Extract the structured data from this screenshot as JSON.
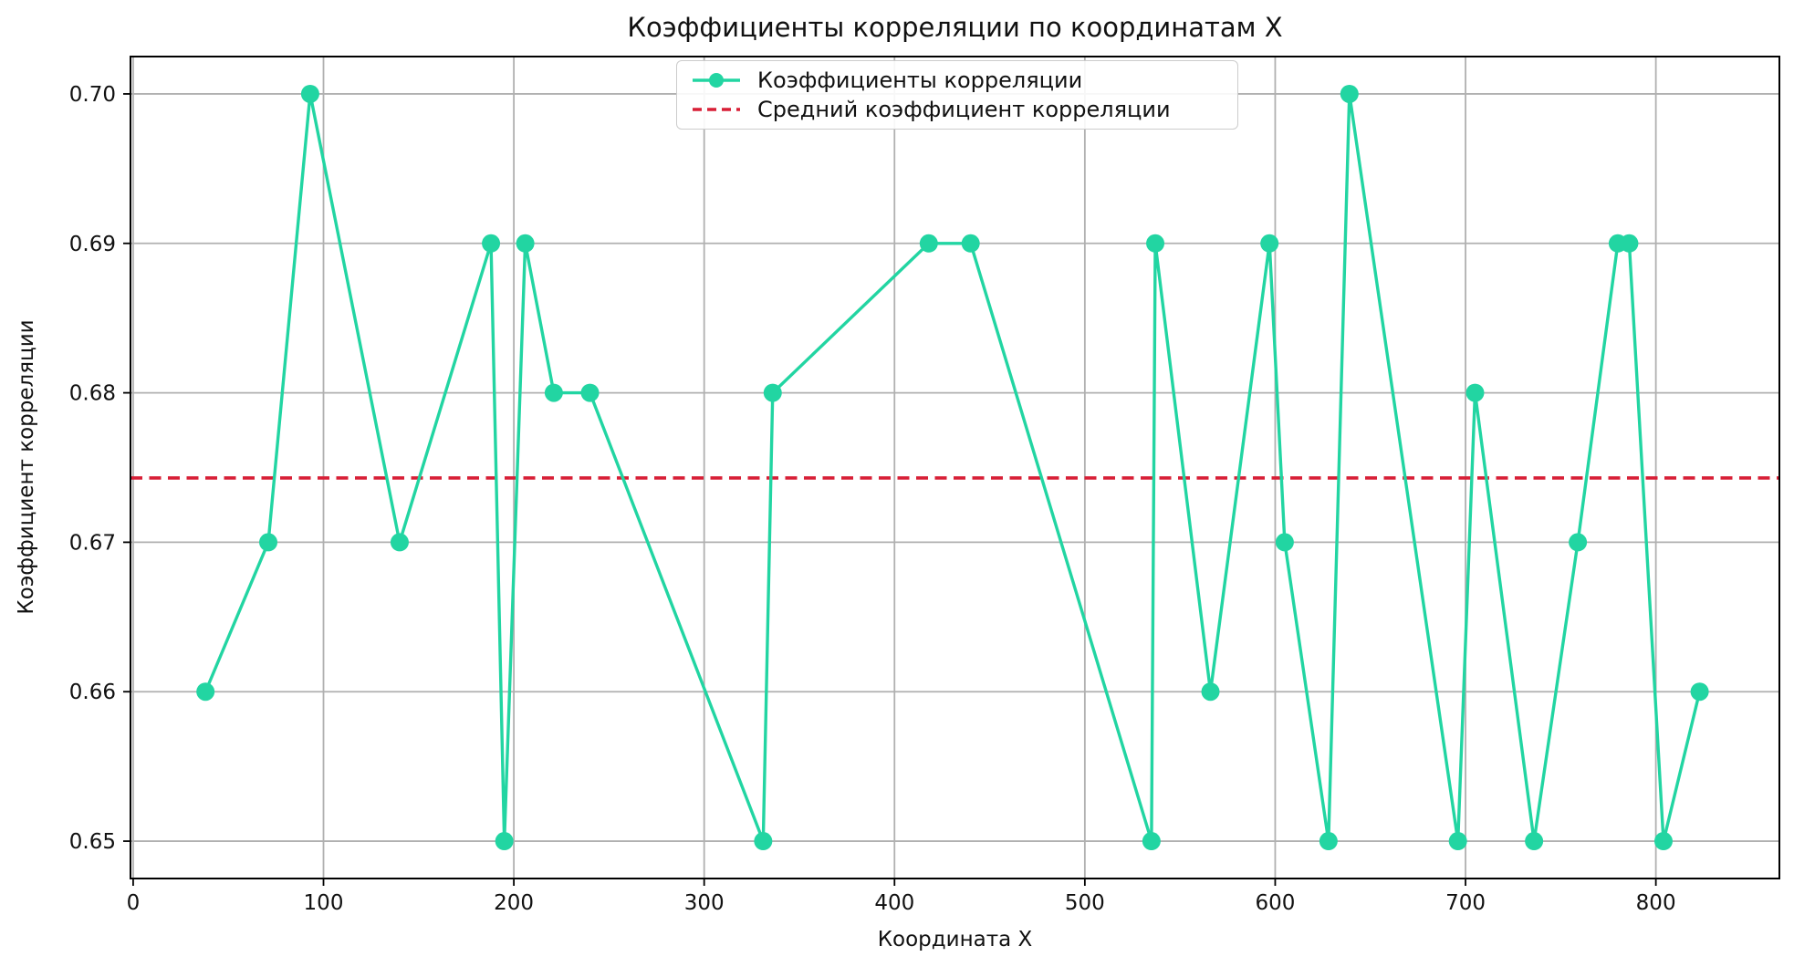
{
  "figure": {
    "background": "#ffffff"
  },
  "chart_data": {
    "type": "line",
    "title": "Коэффициенты корреляции по координатам X",
    "xlabel": "Координата X",
    "ylabel": "Коэффициент корреляции",
    "xlim": [
      -1.4,
      864.9
    ],
    "ylim": [
      0.6475,
      0.7025
    ],
    "xticks": [
      0,
      100,
      200,
      300,
      400,
      500,
      600,
      700,
      800
    ],
    "yticks": [
      0.65,
      0.66,
      0.67,
      0.68,
      0.69,
      0.7
    ],
    "ytick_decimals": 2,
    "grid": true,
    "grid_color": "#b0b0b0",
    "spine_color": "#000000",
    "tick_label_color": "#111111",
    "legend_position": "upper center",
    "legend": {
      "entries": [
        {
          "label": "Коэффициенты корреляции",
          "type": "line-marker",
          "color": "#22d5a2"
        },
        {
          "label": "Средний коэффициент корреляции",
          "type": "dashed-line",
          "color": "#d81f36"
        }
      ]
    },
    "series": [
      {
        "name": "Коэффициенты корреляции",
        "color": "#22d5a2",
        "marker": "circle",
        "marker_radius": 10,
        "line_width": 3.4,
        "x": [
          38,
          71,
          93,
          140,
          188,
          195,
          206,
          221,
          240,
          331,
          336,
          418,
          440,
          535,
          537,
          566,
          597,
          605,
          628,
          639,
          696,
          705,
          736,
          759,
          780,
          786,
          804,
          823
        ],
        "y": [
          0.66,
          0.67,
          0.7,
          0.67,
          0.69,
          0.65,
          0.69,
          0.68,
          0.68,
          0.65,
          0.68,
          0.69,
          0.69,
          0.65,
          0.69,
          0.66,
          0.69,
          0.67,
          0.65,
          0.7,
          0.65,
          0.68,
          0.65,
          0.67,
          0.69,
          0.69,
          0.65,
          0.66
        ]
      }
    ],
    "mean_line": {
      "name": "Средний коэффициент корреляции",
      "color": "#d81f36",
      "style": "dashed",
      "value": 0.6743
    }
  }
}
